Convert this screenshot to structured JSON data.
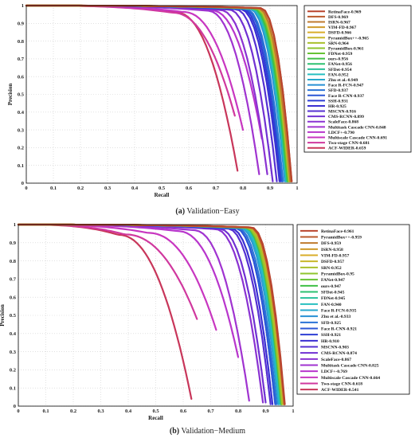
{
  "captions": [
    {
      "tag": "(a)",
      "text": "Validation−Easy"
    },
    {
      "tag": "(b)",
      "text": "Validation−Medium"
    }
  ],
  "chart_data": [
    {
      "type": "line",
      "title": "",
      "xlabel": "Recall",
      "ylabel": "Precision",
      "xlim": [
        0,
        1
      ],
      "ylim": [
        0,
        1
      ],
      "xticks": [
        "0",
        "0.1",
        "0.2",
        "0.3",
        "0.4",
        "0.5",
        "0.6",
        "0.7",
        "0.8",
        "0.9",
        "1"
      ],
      "yticks": [
        "0",
        "0.1",
        "0.2",
        "0.3",
        "0.4",
        "0.5",
        "0.6",
        "0.7",
        "0.8",
        "0.9",
        "1"
      ],
      "grid": true,
      "legend_position": "right",
      "series": [
        {
          "name": "RetinaFace-0.969",
          "color": "#b9442e",
          "end_recall": 0.98,
          "end_precision": 0.01
        },
        {
          "name": "DFS-0.969",
          "color": "#bb5a2c",
          "end_recall": 0.98,
          "end_precision": 0.01
        },
        {
          "name": "ISRN-0.967",
          "color": "#bf7a2e",
          "end_recall": 0.975,
          "end_precision": 0.01
        },
        {
          "name": "VIM-FD-0.967",
          "color": "#cf9a2a",
          "end_recall": 0.975,
          "end_precision": 0.01
        },
        {
          "name": "DSFD-0.966",
          "color": "#d9ad2a",
          "end_recall": 0.975,
          "end_precision": 0.01
        },
        {
          "name": "PyramidBox++-0.965",
          "color": "#c8b72a",
          "end_recall": 0.972,
          "end_precision": 0.01
        },
        {
          "name": "SRN-0.964",
          "color": "#a9c02c",
          "end_recall": 0.972,
          "end_precision": 0.01
        },
        {
          "name": "PyramidBox-0.961",
          "color": "#8fc52e",
          "end_recall": 0.97,
          "end_precision": 0.01
        },
        {
          "name": "FDNet-0.959",
          "color": "#66c233",
          "end_recall": 0.968,
          "end_precision": 0.01
        },
        {
          "name": "ours-0.956",
          "color": "#3fbf44",
          "end_recall": 0.965,
          "end_precision": 0.01
        },
        {
          "name": "FANet-0.956",
          "color": "#2ec070",
          "end_recall": 0.965,
          "end_precision": 0.01
        },
        {
          "name": "SFDet-0.954",
          "color": "#29c09a",
          "end_recall": 0.962,
          "end_precision": 0.01
        },
        {
          "name": "FAN-0.952",
          "color": "#27bfc0",
          "end_recall": 0.96,
          "end_precision": 0.01
        },
        {
          "name": "Zhu et al.-0.949",
          "color": "#27a9cf",
          "end_recall": 0.958,
          "end_precision": 0.01
        },
        {
          "name": "Face R-FCN-0.947",
          "color": "#2890d4",
          "end_recall": 0.955,
          "end_precision": 0.01
        },
        {
          "name": "SFD-0.937",
          "color": "#2a73d6",
          "end_recall": 0.948,
          "end_precision": 0.01
        },
        {
          "name": "Face R-CNN-0.937",
          "color": "#2b57d6",
          "end_recall": 0.945,
          "end_precision": 0.01
        },
        {
          "name": "SSH-0.931",
          "color": "#2d3ed4",
          "end_recall": 0.94,
          "end_precision": 0.01
        },
        {
          "name": "HR-0.925",
          "color": "#3a2fd2",
          "end_recall": 0.935,
          "end_precision": 0.01
        },
        {
          "name": "MSCNN-0.916",
          "color": "#5530d2",
          "end_recall": 0.925,
          "end_precision": 0.01
        },
        {
          "name": "CMS-RCNN-0.899",
          "color": "#7030d2",
          "end_recall": 0.91,
          "end_precision": 0.01
        },
        {
          "name": "ScaleFace-0.868",
          "color": "#8a32d2",
          "end_recall": 0.89,
          "end_precision": 0.05
        },
        {
          "name": "Multitask Cascade CNN-0.848",
          "color": "#a033d0",
          "end_recall": 0.86,
          "end_precision": 0.05
        },
        {
          "name": "LDCF+-0.790",
          "color": "#b835cc",
          "end_recall": 0.87,
          "end_precision": 0.25
        },
        {
          "name": "Multiscale Cascade CNN-0.691",
          "color": "#c836c0",
          "end_recall": 0.8,
          "end_precision": 0.3
        },
        {
          "name": "Two-stage CNN-0.681",
          "color": "#d0389e",
          "end_recall": 0.77,
          "end_precision": 0.38
        },
        {
          "name": "ACF-WIDER-0.659",
          "color": "#c8365a",
          "end_recall": 0.78,
          "end_precision": 0.07
        }
      ]
    },
    {
      "type": "line",
      "title": "",
      "xlabel": "Recall",
      "ylabel": "Precision",
      "xlim": [
        0,
        1
      ],
      "ylim": [
        0,
        1
      ],
      "xticks": [
        "0",
        "0.1",
        "0.2",
        "0.3",
        "0.4",
        "0.5",
        "0.6",
        "0.7",
        "0.8",
        "0.9",
        "1"
      ],
      "yticks": [
        "0",
        "0.1",
        "0.2",
        "0.3",
        "0.4",
        "0.5",
        "0.6",
        "0.7",
        "0.8",
        "0.9",
        "1"
      ],
      "grid": true,
      "legend_position": "right",
      "series": [
        {
          "name": "RetinaFace-0.961",
          "color": "#b9442e",
          "end_recall": 0.97,
          "end_precision": 0.01
        },
        {
          "name": "PyramidBox++-0.959",
          "color": "#bb5a2c",
          "end_recall": 0.968,
          "end_precision": 0.01
        },
        {
          "name": "DFS-0.959",
          "color": "#bf7a2e",
          "end_recall": 0.968,
          "end_precision": 0.01
        },
        {
          "name": "ISRN-0.958",
          "color": "#cf9a2a",
          "end_recall": 0.967,
          "end_precision": 0.01
        },
        {
          "name": "VIM-FD-0.957",
          "color": "#d9ad2a",
          "end_recall": 0.966,
          "end_precision": 0.01
        },
        {
          "name": "DSFD-0.957",
          "color": "#c8b72a",
          "end_recall": 0.966,
          "end_precision": 0.01
        },
        {
          "name": "SRN-0.952",
          "color": "#a9c02c",
          "end_recall": 0.962,
          "end_precision": 0.01
        },
        {
          "name": "PyramidBox-0.95",
          "color": "#8fc52e",
          "end_recall": 0.96,
          "end_precision": 0.01
        },
        {
          "name": "FANet-0.947",
          "color": "#66c233",
          "end_recall": 0.958,
          "end_precision": 0.01
        },
        {
          "name": "ours-0.947",
          "color": "#3fbf44",
          "end_recall": 0.958,
          "end_precision": 0.01
        },
        {
          "name": "SFDet-0.945",
          "color": "#2ec070",
          "end_recall": 0.956,
          "end_precision": 0.01
        },
        {
          "name": "FDNet-0.945",
          "color": "#29c09a",
          "end_recall": 0.956,
          "end_precision": 0.01
        },
        {
          "name": "FAN-0.940",
          "color": "#27bfc0",
          "end_recall": 0.952,
          "end_precision": 0.01
        },
        {
          "name": "Face R-FCN-0.935",
          "color": "#27a9cf",
          "end_recall": 0.948,
          "end_precision": 0.01
        },
        {
          "name": "Zhu et al.-0.933",
          "color": "#2890d4",
          "end_recall": 0.946,
          "end_precision": 0.01
        },
        {
          "name": "SFD-0.925",
          "color": "#2a73d6",
          "end_recall": 0.94,
          "end_precision": 0.01
        },
        {
          "name": "Face R-CNN-0.921",
          "color": "#2b57d6",
          "end_recall": 0.935,
          "end_precision": 0.01
        },
        {
          "name": "SSH-0.921",
          "color": "#2d3ed4",
          "end_recall": 0.935,
          "end_precision": 0.01
        },
        {
          "name": "HR-0.910",
          "color": "#3a2fd2",
          "end_recall": 0.925,
          "end_precision": 0.01
        },
        {
          "name": "MSCNN-0.903",
          "color": "#5530d2",
          "end_recall": 0.918,
          "end_precision": 0.01
        },
        {
          "name": "CMS-RCNN-0.874",
          "color": "#7030d2",
          "end_recall": 0.9,
          "end_precision": 0.02
        },
        {
          "name": "ScaleFace-0.867",
          "color": "#8a32d2",
          "end_recall": 0.89,
          "end_precision": 0.02
        },
        {
          "name": "Multitask Cascade CNN-0.825",
          "color": "#a033d0",
          "end_recall": 0.84,
          "end_precision": 0.03
        },
        {
          "name": "LDCF+-0.769",
          "color": "#b835cc",
          "end_recall": 0.8,
          "end_precision": 0.27
        },
        {
          "name": "Multiscale Cascade CNN-0.664",
          "color": "#c836c0",
          "end_recall": 0.72,
          "end_precision": 0.42
        },
        {
          "name": "Two-stage CNN-0.618",
          "color": "#d0389e",
          "end_recall": 0.65,
          "end_precision": 0.48
        },
        {
          "name": "ACF-WIDER-0.541",
          "color": "#c8365a",
          "end_recall": 0.63,
          "end_precision": 0.04
        }
      ]
    }
  ]
}
